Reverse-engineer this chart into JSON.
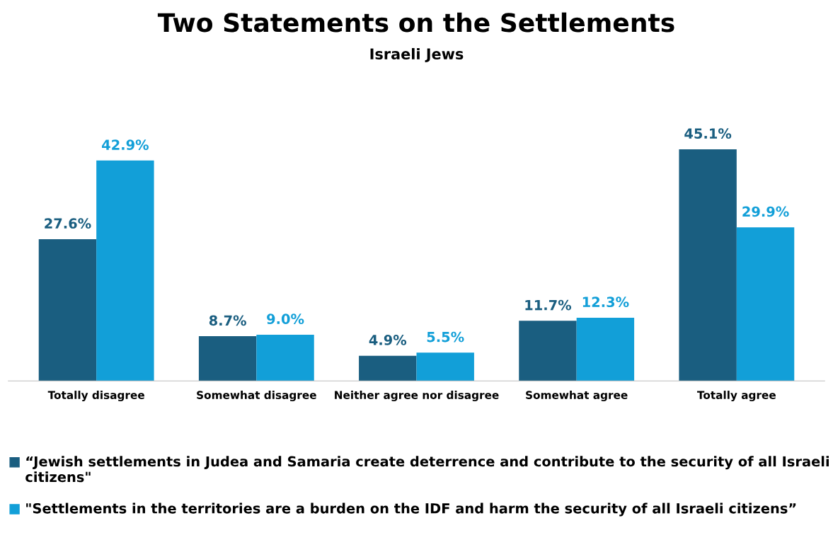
{
  "chart_data": {
    "type": "bar",
    "title": "Two Statements on the Settlements",
    "subtitle": "Israeli Jews",
    "categories": [
      "Totally disagree",
      "Somewhat disagree",
      "Neither agree nor disagree",
      "Somewhat agree",
      "Totally agree"
    ],
    "series": [
      {
        "name": "“Jewish settlements in Judea and Samaria create deterrence and contribute to the security of all Israeli citizens\"",
        "color": "#1a5e80",
        "values": [
          27.6,
          8.7,
          4.9,
          11.7,
          45.1
        ],
        "value_labels": [
          "27.6%",
          "8.7%",
          "4.9%",
          "11.7%",
          "45.1%"
        ]
      },
      {
        "name": "\"Settlements in the territories are a burden on the IDF and harm the security of all Israeli citizens”",
        "color": "#129fd8",
        "values": [
          42.9,
          9.0,
          5.5,
          12.3,
          29.9
        ],
        "value_labels": [
          "42.9%",
          "9.0%",
          "5.5%",
          "12.3%",
          "29.9%"
        ]
      }
    ],
    "legend": "bottom",
    "grid": false,
    "tick_labels": "x"
  }
}
